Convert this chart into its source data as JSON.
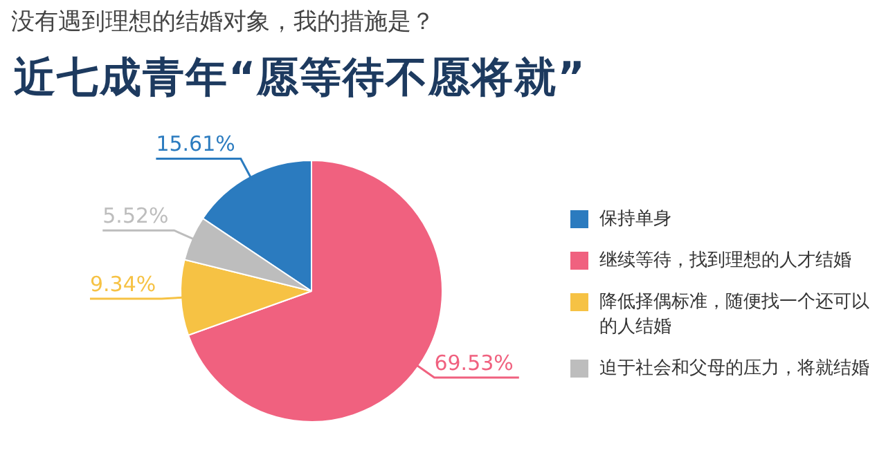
{
  "chart_data": {
    "type": "pie",
    "title": "没有遇到理想的结婚对象，我的措施是？",
    "subtitle": "近七成青年“愿等待不愿将就”",
    "categories": [
      "保持单身",
      "继续等待，找到理想的人才结婚",
      "降低择偶标准，随便找一个还可以的人结婚",
      "迫于社会和父母的压力，将就结婚"
    ],
    "values": [
      15.61,
      69.53,
      9.34,
      5.52
    ],
    "value_labels": [
      "15.61%",
      "69.53%",
      "9.34%",
      "5.52%"
    ],
    "colors": [
      "#2b7bbf",
      "#f0617f",
      "#f6c244",
      "#bdbdbd"
    ],
    "legend": "right"
  }
}
